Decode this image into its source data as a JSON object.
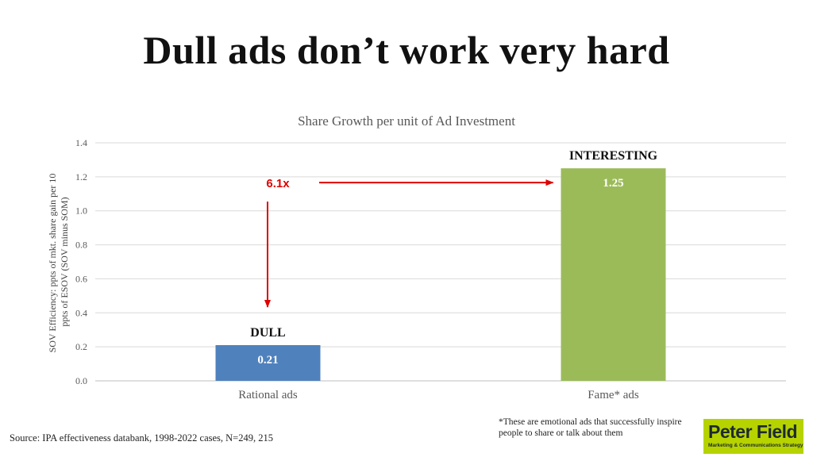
{
  "slide": {
    "title": "Dull ads don’t work very hard",
    "footnote": "*These are emotional ads that successfully inspire people to share or talk about them",
    "source": "Source: IPA effectiveness databank, 1998-2022 cases, N=249, 215",
    "logo": {
      "name": "Peter Field",
      "tagline": "Marketing & Communications Strategy"
    }
  },
  "chart_data": {
    "type": "bar",
    "title": "Share Growth per unit of Ad Investment",
    "ylabel_lines": [
      "SOV Efficiency: ppts of mkt. share gain per 10",
      "ppts of ESOV (SOV minus SOM)"
    ],
    "categories": [
      "Rational ads",
      "Fame* ads"
    ],
    "values": [
      0.21,
      1.25
    ],
    "data_labels": [
      "0.21",
      "1.25"
    ],
    "bar_colors": [
      "#4f81bd",
      "#9bbb59"
    ],
    "annotations": [
      "DULL",
      "INTERESTING"
    ],
    "ratio_label": "6.1x",
    "arrow_color": "#e00000",
    "ylim": [
      0,
      1.4
    ],
    "yticks": [
      "0.0",
      "0.2",
      "0.4",
      "0.6",
      "0.8",
      "1.0",
      "1.2",
      "1.4"
    ],
    "grid": true
  }
}
